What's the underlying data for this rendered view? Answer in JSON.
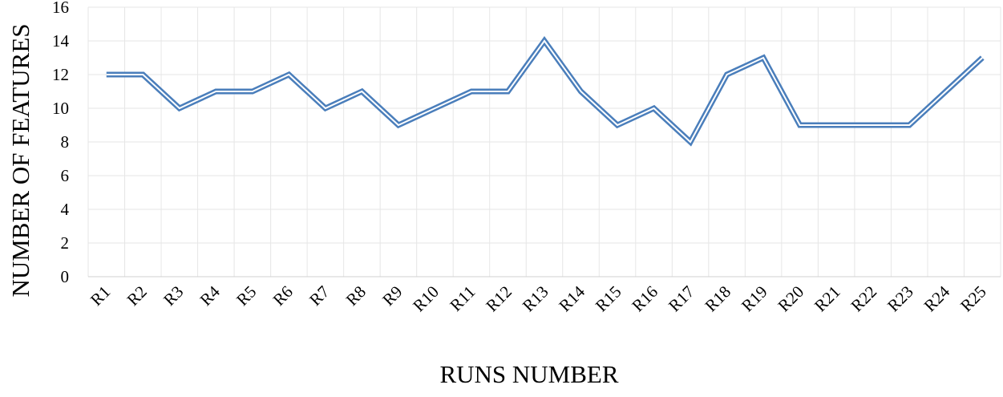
{
  "chart_data": {
    "type": "line",
    "x_label": "RUNS NUMBER",
    "y_label": "NUMBER OF FEATURES",
    "categories": [
      "R1",
      "R2",
      "R3",
      "R4",
      "R5",
      "R6",
      "R7",
      "R8",
      "R9",
      "R10",
      "R11",
      "R12",
      "R13",
      "R14",
      "R15",
      "R16",
      "R17",
      "R18",
      "R19",
      "R20",
      "R21",
      "R22",
      "R23",
      "R24",
      "R25"
    ],
    "values": [
      12,
      12,
      10,
      11,
      11,
      12,
      10,
      11,
      9,
      10,
      11,
      11,
      14,
      11,
      9,
      10,
      8,
      12,
      13,
      9,
      9,
      9,
      9,
      11,
      13
    ],
    "color": "#4a7ebb",
    "ylim": [
      0,
      16
    ],
    "yticks": [
      0,
      2,
      4,
      6,
      8,
      10,
      12,
      14,
      16
    ],
    "grid": true
  }
}
